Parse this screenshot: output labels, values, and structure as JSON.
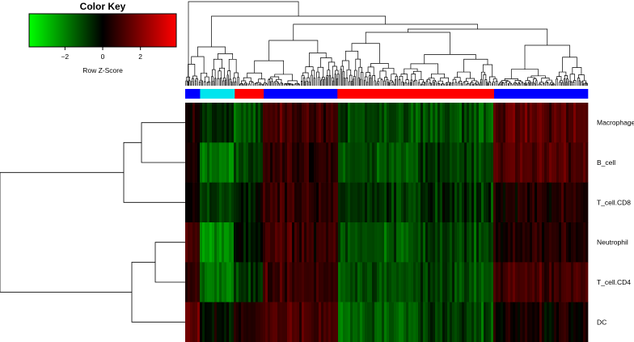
{
  "chart_data": {
    "type": "heatmap",
    "color_key": {
      "title": "Color Key",
      "xlabel": "Row Z-Score",
      "ticks": [
        "−2",
        "0",
        "2"
      ],
      "tick_values": [
        -2,
        0,
        2
      ],
      "range": [
        -3.9,
        3.9
      ],
      "colors": [
        "#00ff00",
        "#000000",
        "#ff0000"
      ]
    },
    "rows": [
      "Macrophage",
      "B_cell",
      "T_cell.CD8",
      "Neutrophil",
      "T_cell.CD4",
      "DC"
    ],
    "column_groups": [
      {
        "color": "#0000ff",
        "fraction": 0.037
      },
      {
        "color": "#00e5ee",
        "fraction": 0.086
      },
      {
        "color": "#ff0000",
        "fraction": 0.072
      },
      {
        "color": "#0000ff",
        "fraction": 0.183
      },
      {
        "color": "#ff0000",
        "fraction": 0.389
      },
      {
        "color": "#0000ff",
        "fraction": 0.233
      }
    ],
    "block_mean_zscores": [
      [
        0.3,
        -0.7,
        -1.3,
        0.9,
        -1.0,
        -1.2,
        1.3
      ],
      [
        0.2,
        -1.8,
        -1.0,
        0.7,
        -1.2,
        -0.9,
        1.2
      ],
      [
        0.1,
        -0.8,
        -0.3,
        0.8,
        -0.8,
        -0.7,
        0.5
      ],
      [
        1.2,
        -2.2,
        -0.2,
        0.9,
        -1.3,
        -1.0,
        0.4
      ],
      [
        0.8,
        -1.9,
        -0.9,
        0.8,
        -1.3,
        -1.0,
        1.0
      ],
      [
        1.5,
        -0.2,
        0.7,
        1.1,
        -1.5,
        -0.9,
        0.2
      ]
    ]
  }
}
